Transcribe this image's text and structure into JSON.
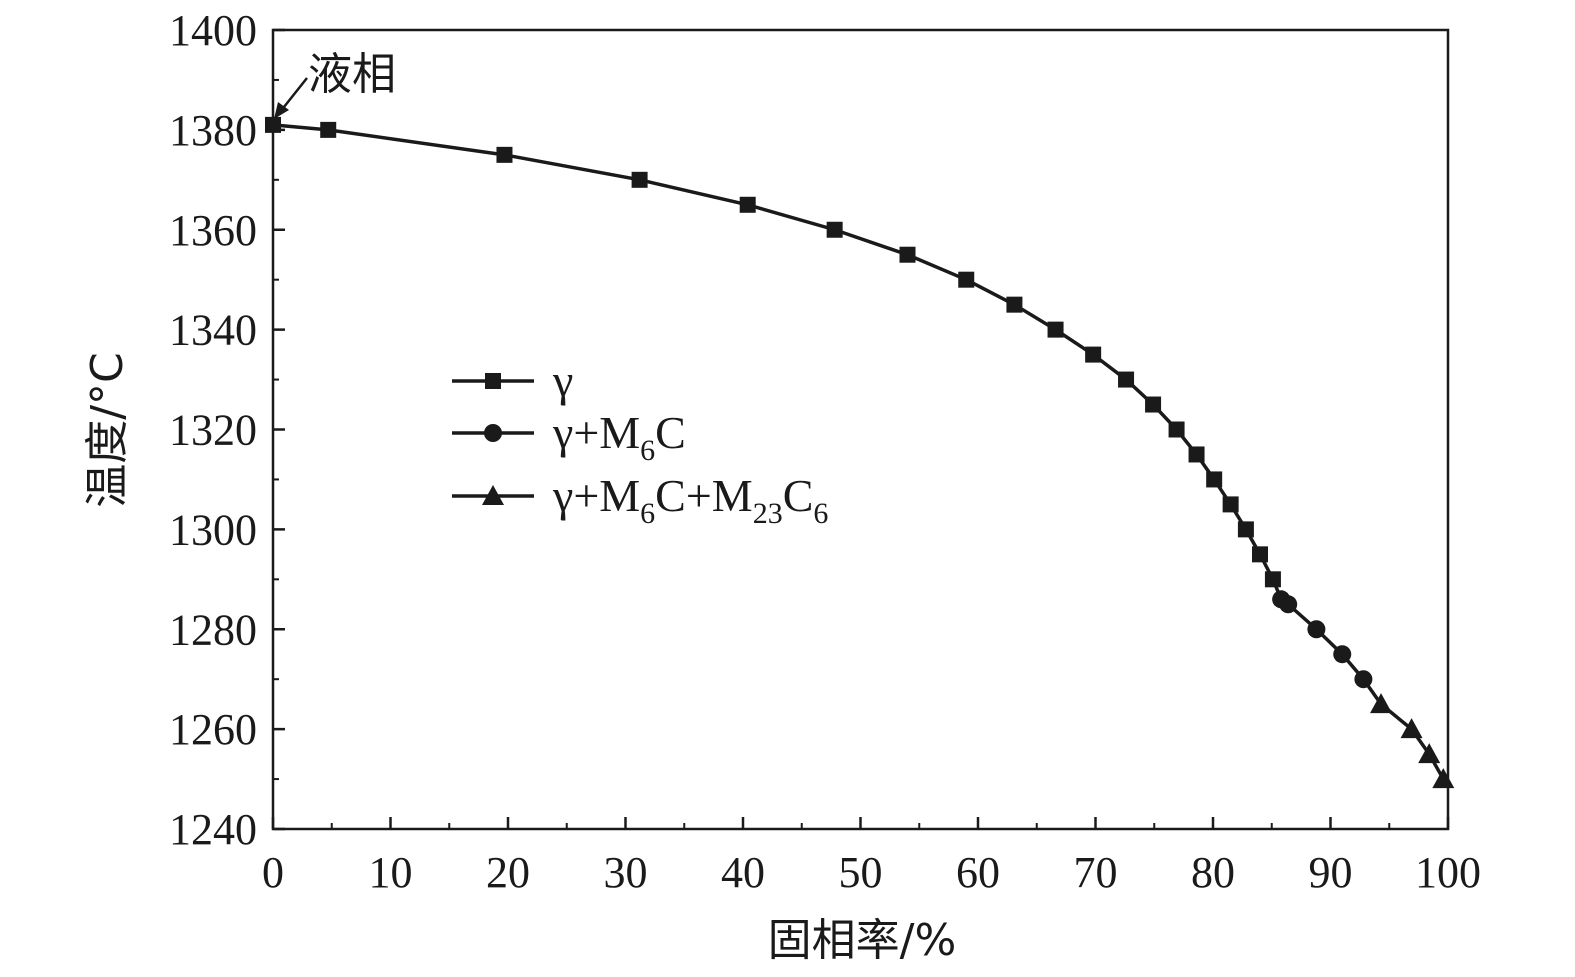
{
  "chart_data": {
    "type": "line",
    "xlabel": "固相率/%",
    "ylabel": "温度/°C",
    "xlim": [
      0,
      100
    ],
    "ylim": [
      1240,
      1400
    ],
    "xticks": [
      "0",
      "10",
      "20",
      "30",
      "40",
      "50",
      "60",
      "70",
      "80",
      "90",
      "100"
    ],
    "yticks": [
      "1240",
      "1260",
      "1280",
      "1300",
      "1320",
      "1340",
      "1360",
      "1380",
      "1400"
    ],
    "grid": false,
    "legend_position": "center-left",
    "annotation": "液相",
    "series": [
      {
        "name": "γ",
        "legend": {
          "base": "γ",
          "parts": []
        },
        "marker": "square",
        "x": [
          0,
          4.7,
          19.7,
          31.2,
          40.4,
          47.8,
          54.0,
          59.0,
          63.1,
          66.6,
          69.8,
          72.6,
          74.9,
          76.9,
          78.6,
          80.1,
          81.5,
          82.8,
          84.0,
          85.1
        ],
        "y": [
          1381,
          1380,
          1375,
          1370,
          1365,
          1360,
          1355,
          1350,
          1345,
          1340,
          1335,
          1330,
          1325,
          1320,
          1315,
          1310,
          1305,
          1300,
          1295,
          1290
        ]
      },
      {
        "name": "γ+M6C",
        "legend": {
          "base": "γ+M",
          "parts": [
            {
              "sub": "6"
            },
            {
              "text": "C"
            }
          ]
        },
        "marker": "circle",
        "x": [
          85.8,
          86.4,
          88.8,
          91.0,
          92.8
        ],
        "y": [
          1286,
          1285,
          1280,
          1275,
          1270
        ]
      },
      {
        "name": "γ+M6C+M23C6",
        "legend": {
          "base": "γ+M",
          "parts": [
            {
              "sub": "6"
            },
            {
              "text": "C+M"
            },
            {
              "sub": "23"
            },
            {
              "text": "C"
            },
            {
              "sub": "6"
            }
          ]
        },
        "marker": "triangle",
        "x": [
          94.3,
          96.9,
          98.4,
          99.6
        ],
        "y": [
          1265,
          1260,
          1255,
          1250
        ]
      }
    ]
  }
}
